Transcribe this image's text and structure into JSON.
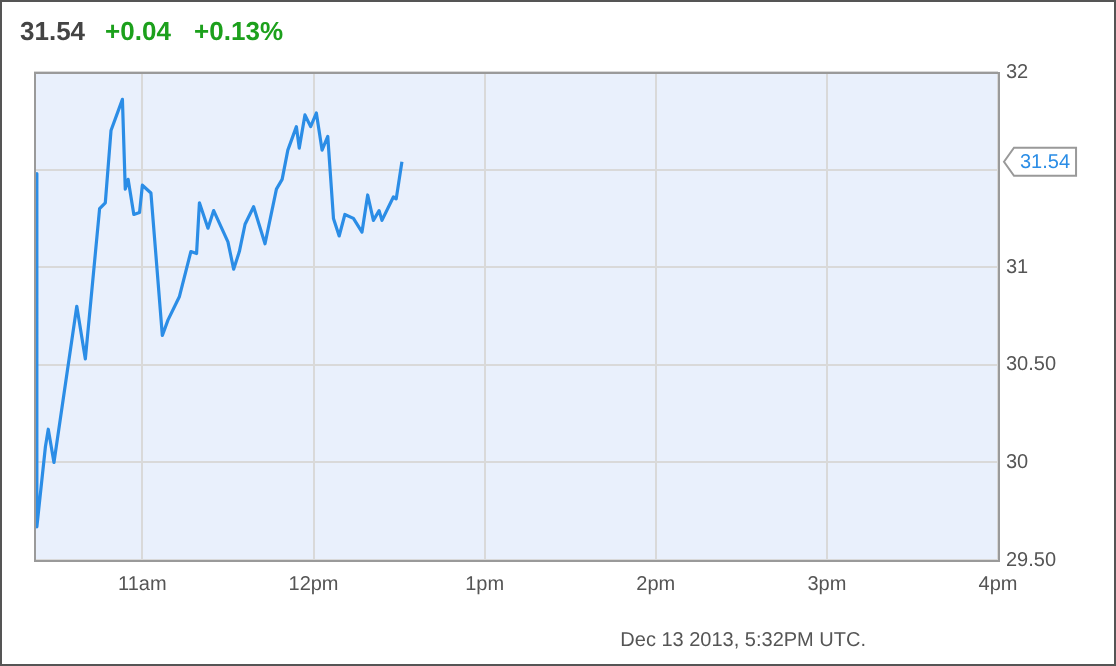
{
  "chart_data": {
    "type": "line",
    "title": "31.54",
    "subtitle": "+0.04 +0.13%",
    "annotations": [
      "31.54",
      "Dec 13 2013, 5:32PM UTC."
    ],
    "xlim": [
      "2013-12-13T10:22",
      "2013-12-13T16:00"
    ],
    "xticks": [
      {
        "value": "2013-12-13T11:00",
        "label": "11am"
      },
      {
        "value": "2013-12-13T12:00",
        "label": "12pm"
      },
      {
        "value": "2013-12-13T13:00",
        "label": "1pm"
      },
      {
        "value": "2013-12-13T14:00",
        "label": "2pm"
      },
      {
        "value": "2013-12-13T15:00",
        "label": "3pm"
      },
      {
        "value": "2013-12-13T16:00",
        "label": "4pm"
      }
    ],
    "ylim": [
      29.5,
      32
    ],
    "yticks": [
      {
        "value": 29.5,
        "label": "29.50"
      },
      30,
      {
        "value": 30.5,
        "label": "30.50"
      },
      31,
      {
        "value": 31.5,
        "label": null
      },
      32
    ],
    "grid": true,
    "legend": false,
    "marker": "none",
    "line_style": "solid",
    "series": [
      {
        "color": "#2b8de6",
        "x": [
          "2013-12-13T10:23",
          "2013-12-13T10:23",
          "2013-12-13T10:26",
          "2013-12-13T10:27",
          "2013-12-13T10:29",
          "2013-12-13T10:37",
          "2013-12-13T10:40",
          "2013-12-13T10:45",
          "2013-12-13T10:47",
          "2013-12-13T10:49",
          "2013-12-13T10:53",
          "2013-12-13T10:54",
          "2013-12-13T10:55",
          "2013-12-13T10:57",
          "2013-12-13T10:59",
          "2013-12-13T11:00",
          "2013-12-13T11:03",
          "2013-12-13T11:07",
          "2013-12-13T11:09",
          "2013-12-13T11:13",
          "2013-12-13T11:17",
          "2013-12-13T11:19",
          "2013-12-13T11:20",
          "2013-12-13T11:23",
          "2013-12-13T11:25",
          "2013-12-13T11:30",
          "2013-12-13T11:32",
          "2013-12-13T11:34",
          "2013-12-13T11:36",
          "2013-12-13T11:39",
          "2013-12-13T11:43",
          "2013-12-13T11:47",
          "2013-12-13T11:49",
          "2013-12-13T11:51",
          "2013-12-13T11:54",
          "2013-12-13T11:55",
          "2013-12-13T11:57",
          "2013-12-13T11:59",
          "2013-12-13T12:01",
          "2013-12-13T12:03",
          "2013-12-13T12:05",
          "2013-12-13T12:07",
          "2013-12-13T12:09",
          "2013-12-13T12:11",
          "2013-12-13T12:14",
          "2013-12-13T12:17",
          "2013-12-13T12:19",
          "2013-12-13T12:21",
          "2013-12-13T12:23",
          "2013-12-13T12:24",
          "2013-12-13T12:28",
          "2013-12-13T12:29",
          "2013-12-13T12:31"
        ],
        "values": [
          31.48,
          29.67,
          30.08,
          30.17,
          30.0,
          30.8,
          30.53,
          31.3,
          31.33,
          31.7,
          31.86,
          31.4,
          31.45,
          31.27,
          31.28,
          31.42,
          31.38,
          30.65,
          30.73,
          30.85,
          31.08,
          31.07,
          31.33,
          31.2,
          31.29,
          31.13,
          30.99,
          31.08,
          31.22,
          31.31,
          31.12,
          31.4,
          31.45,
          31.6,
          31.72,
          31.61,
          31.78,
          31.72,
          31.79,
          31.6,
          31.67,
          31.25,
          31.16,
          31.27,
          31.25,
          31.18,
          31.37,
          31.24,
          31.29,
          31.24,
          31.36,
          31.35,
          31.54
        ]
      }
    ]
  }
}
